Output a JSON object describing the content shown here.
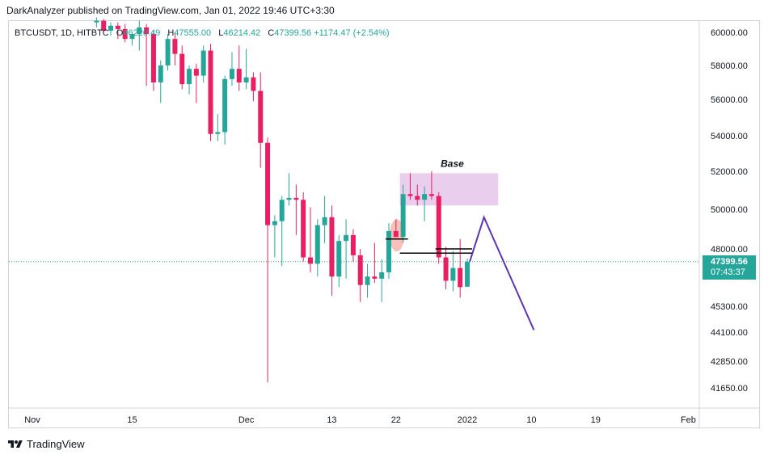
{
  "header": {
    "published_line": "DarkAnalyzer published on TradingView.com, Jan 01, 2022 19:46 UTC+3:30"
  },
  "legend": {
    "symbol": "BTCUSDT, 1D, HITBTC",
    "open_label": "O",
    "open_value": "46220.49",
    "high_label": "H",
    "high_value": "47555.00",
    "low_label": "L",
    "low_value": "46214.42",
    "close_label": "C",
    "close_value": "47399.56",
    "change": "+1174.47 (+2.54%)"
  },
  "current_price": {
    "value": "47399.56",
    "countdown": "07:43:37"
  },
  "footer": {
    "brand": "TradingView"
  },
  "colors": {
    "up": "#26a69a",
    "down": "#e91e63",
    "base_zone": "#e1bee7",
    "projection": "#5e35b1",
    "level": "#000000",
    "marker": "#f4a79d"
  },
  "chart_data": {
    "type": "candlestick",
    "title": "BTCUSDT, 1D, HITBTC",
    "y_ticks": [
      60000,
      58000,
      56000,
      54000,
      52000,
      50000,
      48000,
      45300,
      44100,
      42850,
      41650
    ],
    "y_tick_labels": [
      "60000.00",
      "58000.00",
      "56000.00",
      "54000.00",
      "52000.00",
      "50000.00",
      "48000.00",
      "45300.00",
      "44100.00",
      "42850.00",
      "41650.00"
    ],
    "x_ticks": [
      {
        "label": "Nov",
        "date": "2021-11-01"
      },
      {
        "label": "15",
        "date": "2021-11-15"
      },
      {
        "label": "Dec",
        "date": "2021-12-01"
      },
      {
        "label": "13",
        "date": "2021-12-13"
      },
      {
        "label": "22",
        "date": "2021-12-22"
      },
      {
        "label": "2022",
        "date": "2022-01-01"
      },
      {
        "label": "10",
        "date": "2022-01-10"
      },
      {
        "label": "19",
        "date": "2022-01-19"
      },
      {
        "label": "Feb",
        "date": "2022-02-01"
      }
    ],
    "candles": [
      {
        "date": "2021-11-10",
        "o": 60600,
        "h": 60900,
        "l": 60300,
        "c": 60700
      },
      {
        "date": "2021-11-11",
        "o": 60700,
        "h": 60800,
        "l": 60000,
        "c": 60100
      },
      {
        "date": "2021-11-12",
        "o": 60100,
        "h": 60600,
        "l": 59800,
        "c": 60400
      },
      {
        "date": "2021-11-13",
        "o": 60400,
        "h": 60600,
        "l": 59600,
        "c": 60200
      },
      {
        "date": "2021-11-14",
        "o": 60200,
        "h": 60500,
        "l": 59400,
        "c": 59600
      },
      {
        "date": "2021-11-15",
        "o": 59600,
        "h": 60000,
        "l": 59200,
        "c": 59900
      },
      {
        "date": "2021-11-16",
        "o": 59900,
        "h": 60700,
        "l": 58900,
        "c": 60300
      },
      {
        "date": "2021-11-17",
        "o": 60300,
        "h": 60500,
        "l": 56800,
        "c": 59900
      },
      {
        "date": "2021-11-18",
        "o": 59900,
        "h": 60100,
        "l": 56500,
        "c": 57000
      },
      {
        "date": "2021-11-19",
        "o": 57000,
        "h": 58300,
        "l": 55800,
        "c": 58000
      },
      {
        "date": "2021-11-20",
        "o": 58000,
        "h": 59900,
        "l": 57700,
        "c": 59600
      },
      {
        "date": "2021-11-21",
        "o": 59600,
        "h": 60000,
        "l": 58000,
        "c": 58700
      },
      {
        "date": "2021-11-22",
        "o": 58700,
        "h": 59200,
        "l": 56600,
        "c": 56900
      },
      {
        "date": "2021-11-23",
        "o": 56900,
        "h": 58000,
        "l": 56300,
        "c": 57800
      },
      {
        "date": "2021-11-24",
        "o": 57800,
        "h": 58100,
        "l": 55800,
        "c": 57400
      },
      {
        "date": "2021-11-25",
        "o": 57400,
        "h": 59200,
        "l": 57000,
        "c": 58900
      },
      {
        "date": "2021-11-26",
        "o": 58900,
        "h": 59300,
        "l": 53700,
        "c": 54100
      },
      {
        "date": "2021-11-27",
        "o": 54100,
        "h": 55200,
        "l": 53700,
        "c": 54200
      },
      {
        "date": "2021-11-28",
        "o": 54200,
        "h": 57400,
        "l": 53500,
        "c": 57200
      },
      {
        "date": "2021-11-29",
        "o": 57200,
        "h": 58800,
        "l": 56800,
        "c": 57800
      },
      {
        "date": "2021-11-30",
        "o": 57800,
        "h": 59200,
        "l": 56500,
        "c": 57000
      },
      {
        "date": "2021-12-01",
        "o": 57000,
        "h": 59000,
        "l": 56600,
        "c": 57300
      },
      {
        "date": "2021-12-02",
        "o": 57300,
        "h": 57600,
        "l": 55900,
        "c": 56500
      },
      {
        "date": "2021-12-03",
        "o": 56500,
        "h": 57600,
        "l": 52200,
        "c": 53600
      },
      {
        "date": "2021-12-04",
        "o": 53600,
        "h": 53900,
        "l": 41900,
        "c": 49200
      },
      {
        "date": "2021-12-05",
        "o": 49200,
        "h": 49700,
        "l": 47600,
        "c": 49400
      },
      {
        "date": "2021-12-06",
        "o": 49400,
        "h": 50700,
        "l": 47200,
        "c": 50500
      },
      {
        "date": "2021-12-07",
        "o": 50500,
        "h": 51900,
        "l": 50200,
        "c": 50600
      },
      {
        "date": "2021-12-08",
        "o": 50600,
        "h": 51300,
        "l": 48700,
        "c": 50500
      },
      {
        "date": "2021-12-09",
        "o": 50500,
        "h": 50900,
        "l": 47400,
        "c": 47600
      },
      {
        "date": "2021-12-10",
        "o": 47600,
        "h": 50100,
        "l": 46900,
        "c": 47300
      },
      {
        "date": "2021-12-11",
        "o": 47300,
        "h": 49500,
        "l": 46700,
        "c": 49200
      },
      {
        "date": "2021-12-12",
        "o": 49200,
        "h": 50700,
        "l": 48300,
        "c": 49600
      },
      {
        "date": "2021-12-13",
        "o": 49600,
        "h": 50200,
        "l": 45800,
        "c": 46700
      },
      {
        "date": "2021-12-14",
        "o": 46700,
        "h": 48700,
        "l": 46200,
        "c": 48400
      },
      {
        "date": "2021-12-15",
        "o": 48400,
        "h": 49500,
        "l": 46600,
        "c": 48700
      },
      {
        "date": "2021-12-16",
        "o": 48700,
        "h": 49000,
        "l": 47400,
        "c": 47700
      },
      {
        "date": "2021-12-17",
        "o": 47700,
        "h": 48000,
        "l": 45500,
        "c": 46300
      },
      {
        "date": "2021-12-18",
        "o": 46300,
        "h": 47300,
        "l": 45700,
        "c": 46700
      },
      {
        "date": "2021-12-19",
        "o": 46700,
        "h": 48300,
        "l": 46400,
        "c": 46600
      },
      {
        "date": "2021-12-20",
        "o": 46600,
        "h": 47500,
        "l": 45500,
        "c": 46900
      },
      {
        "date": "2021-12-21",
        "o": 46900,
        "h": 49300,
        "l": 46600,
        "c": 48900
      },
      {
        "date": "2021-12-22",
        "o": 48900,
        "h": 49500,
        "l": 48600,
        "c": 48600
      },
      {
        "date": "2021-12-23",
        "o": 48600,
        "h": 51300,
        "l": 48300,
        "c": 50800
      },
      {
        "date": "2021-12-24",
        "o": 50800,
        "h": 51900,
        "l": 50500,
        "c": 50700
      },
      {
        "date": "2021-12-25",
        "o": 50700,
        "h": 51300,
        "l": 50200,
        "c": 50500
      },
      {
        "date": "2021-12-26",
        "o": 50500,
        "h": 51200,
        "l": 49400,
        "c": 50800
      },
      {
        "date": "2021-12-27",
        "o": 50800,
        "h": 52000,
        "l": 50500,
        "c": 50700
      },
      {
        "date": "2021-12-28",
        "o": 50700,
        "h": 50900,
        "l": 47300,
        "c": 47600
      },
      {
        "date": "2021-12-29",
        "o": 47600,
        "h": 48100,
        "l": 46100,
        "c": 46500
      },
      {
        "date": "2021-12-30",
        "o": 46500,
        "h": 47900,
        "l": 46000,
        "c": 47100
      },
      {
        "date": "2021-12-31",
        "o": 47100,
        "h": 48500,
        "l": 45700,
        "c": 46200
      },
      {
        "date": "2022-01-01",
        "o": 46220.49,
        "h": 47555.0,
        "l": 46214.42,
        "c": 47399.56
      }
    ],
    "annotations": [
      {
        "type": "rect",
        "label": "Base",
        "x1": "2021-12-23",
        "x2": "2022-01-05",
        "y1": 50200,
        "y2": 51900
      },
      {
        "type": "hline",
        "x1": "2021-12-21",
        "x2": "2021-12-23",
        "y": 48500
      },
      {
        "type": "hline",
        "x1": "2021-12-23",
        "x2": "2022-01-01",
        "y": 47800
      },
      {
        "type": "hline",
        "x1": "2021-12-28",
        "x2": "2022-01-01",
        "y": 48000
      },
      {
        "type": "marker",
        "x": "2021-12-22",
        "y": 48600
      },
      {
        "type": "path",
        "points": [
          {
            "date": "2022-01-01",
            "y": 47400
          },
          {
            "date": "2022-01-03",
            "y": 49600
          },
          {
            "date": "2022-01-10",
            "y": 44200
          }
        ]
      }
    ]
  }
}
